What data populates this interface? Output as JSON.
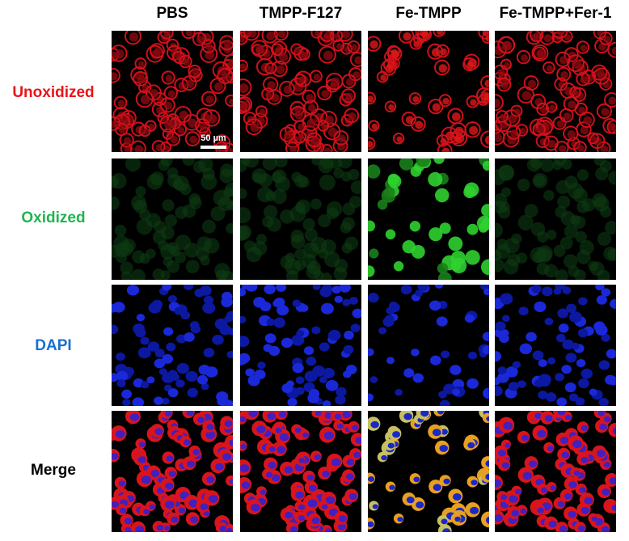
{
  "columns": [
    "PBS",
    "TMPP-F127",
    "Fe-TMPP",
    "Fe-TMPP+Fer-1"
  ],
  "rows": [
    "Unoxidized",
    "Oxidized",
    "DAPI",
    "Merge"
  ],
  "scale_bar": "50 µm"
}
